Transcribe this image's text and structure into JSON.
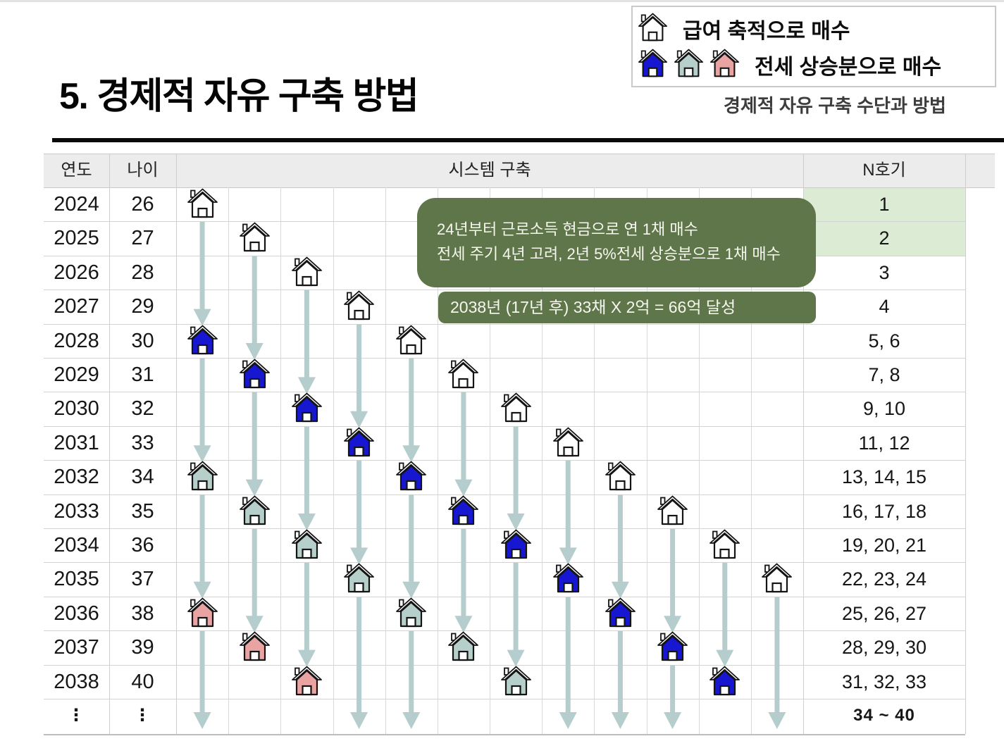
{
  "title": "5. 경제적 자유 구축 방법",
  "legend": {
    "salary_label": "급여 축적으로 매수",
    "jeonse_label": "전세 상승분으로 매수",
    "subtitle": "경제적 자유 구축 수단과 방법"
  },
  "callouts": {
    "strategy": {
      "line1": "24년부터 근로소득 현금으로 연 1채 매수",
      "line2": "전세 주기 4년 고려, 2년 5%전세 상승분으로 1채 매수"
    },
    "goal": {
      "text": "2038년 (17년  후) 33채 X 2억 = 66억 달성"
    }
  },
  "table": {
    "headers": {
      "year": "연도",
      "age": "나이",
      "system": "시스템 구축",
      "unit": "N호기"
    },
    "rows": [
      {
        "year": "2024",
        "age": "26",
        "units": "1",
        "highlight": true
      },
      {
        "year": "2025",
        "age": "27",
        "units": "2",
        "highlight": true
      },
      {
        "year": "2026",
        "age": "28",
        "units": "3"
      },
      {
        "year": "2027",
        "age": "29",
        "units": "4"
      },
      {
        "year": "2028",
        "age": "30",
        "units": "5, 6"
      },
      {
        "year": "2029",
        "age": "31",
        "units": "7, 8"
      },
      {
        "year": "2030",
        "age": "32",
        "units": "9, 10"
      },
      {
        "year": "2031",
        "age": "33",
        "units": "11, 12"
      },
      {
        "year": "2032",
        "age": "34",
        "units": "13, 14, 15"
      },
      {
        "year": "2033",
        "age": "35",
        "units": "16, 17, 18"
      },
      {
        "year": "2034",
        "age": "36",
        "units": "19, 20, 21"
      },
      {
        "year": "2035",
        "age": "37",
        "units": "22, 23, 24"
      },
      {
        "year": "2036",
        "age": "38",
        "units": "25, 26, 27"
      },
      {
        "year": "2037",
        "age": "39",
        "units": "28, 29, 30"
      },
      {
        "year": "2038",
        "age": "40",
        "units": "31, 32, 33"
      },
      {
        "year": "⋮",
        "age": "⋮",
        "units": "34 ~ 40",
        "ellipsis": true
      }
    ]
  },
  "houses": [
    {
      "row": 0,
      "col": 1,
      "color": "white"
    },
    {
      "row": 1,
      "col": 2,
      "color": "white"
    },
    {
      "row": 2,
      "col": 3,
      "color": "white"
    },
    {
      "row": 3,
      "col": 4,
      "color": "white"
    },
    {
      "row": 4,
      "col": 5,
      "color": "white"
    },
    {
      "row": 5,
      "col": 6,
      "color": "white"
    },
    {
      "row": 6,
      "col": 7,
      "color": "white"
    },
    {
      "row": 7,
      "col": 8,
      "color": "white"
    },
    {
      "row": 8,
      "col": 9,
      "color": "white"
    },
    {
      "row": 9,
      "col": 10,
      "color": "white"
    },
    {
      "row": 10,
      "col": 11,
      "color": "white"
    },
    {
      "row": 11,
      "col": 12,
      "color": "white"
    },
    {
      "row": 4,
      "col": 1,
      "color": "blue"
    },
    {
      "row": 5,
      "col": 2,
      "color": "blue"
    },
    {
      "row": 6,
      "col": 3,
      "color": "blue"
    },
    {
      "row": 7,
      "col": 4,
      "color": "blue"
    },
    {
      "row": 8,
      "col": 5,
      "color": "blue"
    },
    {
      "row": 9,
      "col": 6,
      "color": "blue"
    },
    {
      "row": 10,
      "col": 7,
      "color": "blue"
    },
    {
      "row": 11,
      "col": 8,
      "color": "blue"
    },
    {
      "row": 12,
      "col": 9,
      "color": "blue"
    },
    {
      "row": 13,
      "col": 10,
      "color": "blue"
    },
    {
      "row": 14,
      "col": 11,
      "color": "blue"
    },
    {
      "row": 8,
      "col": 1,
      "color": "sage"
    },
    {
      "row": 9,
      "col": 2,
      "color": "sage"
    },
    {
      "row": 10,
      "col": 3,
      "color": "sage"
    },
    {
      "row": 11,
      "col": 4,
      "color": "sage"
    },
    {
      "row": 12,
      "col": 5,
      "color": "sage"
    },
    {
      "row": 13,
      "col": 6,
      "color": "sage"
    },
    {
      "row": 14,
      "col": 7,
      "color": "sage"
    },
    {
      "row": 12,
      "col": 1,
      "color": "pink"
    },
    {
      "row": 13,
      "col": 2,
      "color": "pink"
    },
    {
      "row": 14,
      "col": 3,
      "color": "pink"
    }
  ],
  "arrows": [
    {
      "col": 1,
      "from": 0,
      "to": 4
    },
    {
      "col": 1,
      "from": 4,
      "to": 8
    },
    {
      "col": 1,
      "from": 8,
      "to": 12
    },
    {
      "col": 1,
      "from": 12,
      "to": "ellipsis"
    },
    {
      "col": 2,
      "from": 1,
      "to": 5
    },
    {
      "col": 2,
      "from": 5,
      "to": 9
    },
    {
      "col": 2,
      "from": 9,
      "to": 13
    },
    {
      "col": 3,
      "from": 2,
      "to": 6
    },
    {
      "col": 3,
      "from": 6,
      "to": 10
    },
    {
      "col": 3,
      "from": 10,
      "to": 14
    },
    {
      "col": 4,
      "from": 3,
      "to": 7
    },
    {
      "col": 4,
      "from": 7,
      "to": 11
    },
    {
      "col": 4,
      "from": 11,
      "to": "ellipsis"
    },
    {
      "col": 5,
      "from": 4,
      "to": 8
    },
    {
      "col": 5,
      "from": 8,
      "to": 12
    },
    {
      "col": 5,
      "from": 12,
      "to": "ellipsis"
    },
    {
      "col": 6,
      "from": 5,
      "to": 9
    },
    {
      "col": 6,
      "from": 9,
      "to": 13
    },
    {
      "col": 7,
      "from": 6,
      "to": 10
    },
    {
      "col": 7,
      "from": 10,
      "to": 14
    },
    {
      "col": 8,
      "from": 7,
      "to": 11
    },
    {
      "col": 8,
      "from": 11,
      "to": "ellipsis"
    },
    {
      "col": 9,
      "from": 8,
      "to": 12
    },
    {
      "col": 9,
      "from": 12,
      "to": "ellipsis"
    },
    {
      "col": 10,
      "from": 9,
      "to": 13
    },
    {
      "col": 10,
      "from": 13,
      "to": "ellipsis"
    },
    {
      "col": 11,
      "from": 10,
      "to": 14
    },
    {
      "col": 12,
      "from": 11,
      "to": "ellipsis"
    }
  ],
  "colors": {
    "house_white": "#ffffff",
    "house_blue": "#1717d1",
    "house_sage": "#b7cfca",
    "house_pink": "#e8a3a2",
    "arrow": "#b6cdce",
    "callout_bg": "#5f764a",
    "unit_highlight": "#dcebd4",
    "header_bg": "#ececec"
  }
}
